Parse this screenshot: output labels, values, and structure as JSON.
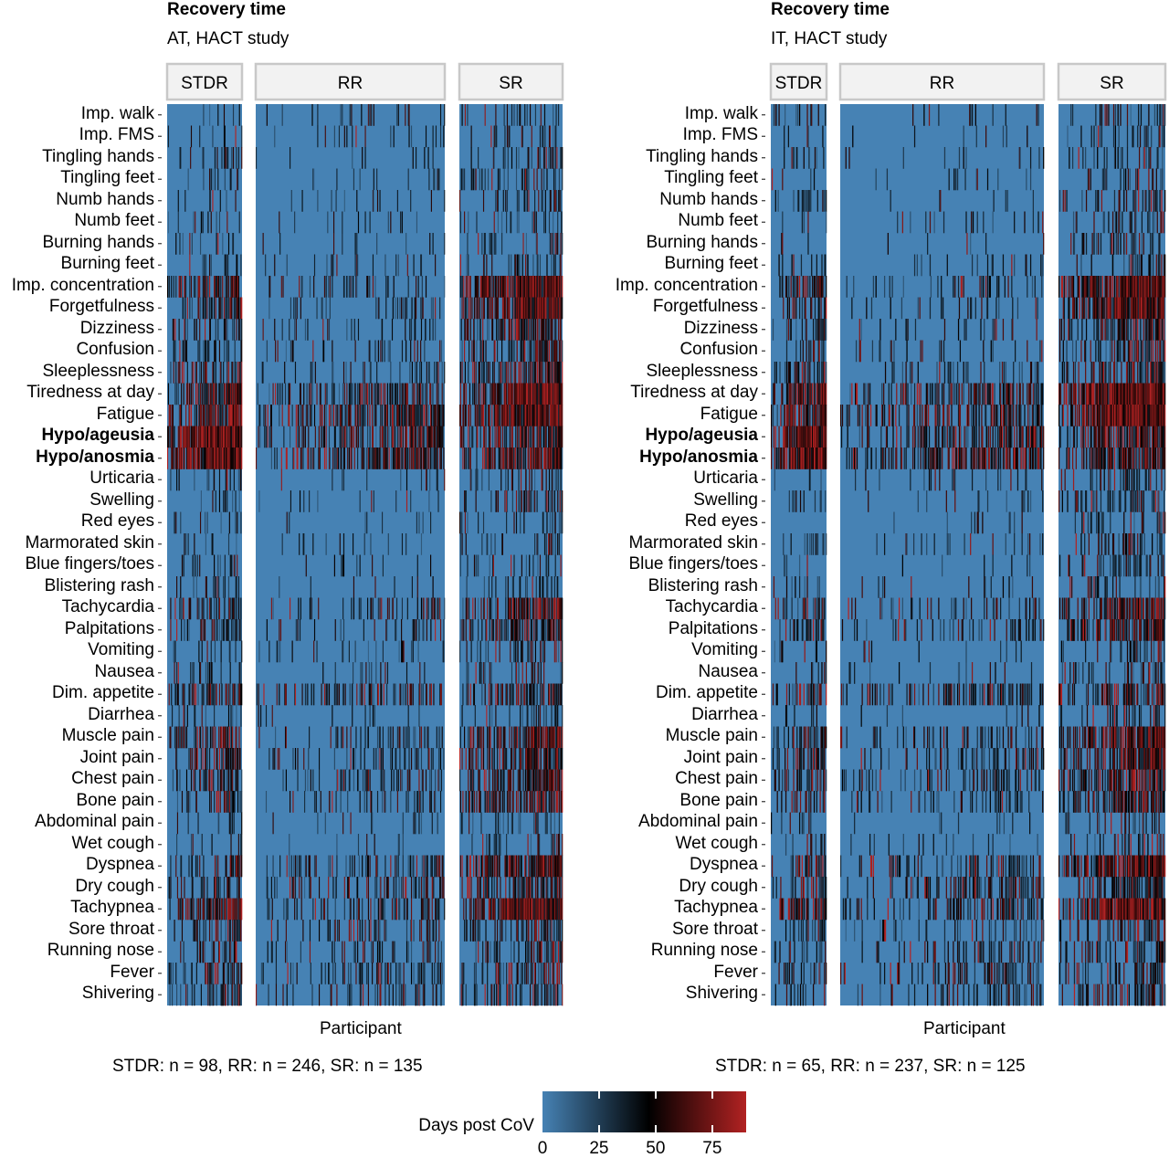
{
  "chart_data": [
    {
      "type": "heatmap",
      "title": "Recovery time",
      "subtitle": "AT, HACT study",
      "xlabel": "Participant",
      "facets": [
        "STDR",
        "RR",
        "SR"
      ],
      "counts": {
        "STDR": 98,
        "RR": 246,
        "SR": 135
      },
      "caption": "STDR: n = 98, RR: n = 246, SR: n = 135"
    },
    {
      "type": "heatmap",
      "title": "Recovery time",
      "subtitle": "IT, HACT study",
      "xlabel": "Participant",
      "facets": [
        "STDR",
        "RR",
        "SR"
      ],
      "counts": {
        "STDR": 65,
        "RR": 237,
        "SR": 125
      },
      "caption": "STDR: n = 65, RR: n = 237, SR: n = 125"
    }
  ],
  "symptoms": [
    "Imp. walk",
    "Imp. FMS",
    "Tingling hands",
    "Tingling feet",
    "Numb hands",
    "Numb feet",
    "Burning hands",
    "Burning feet",
    "Imp. concentration",
    "Forgetfulness",
    "Dizziness",
    "Confusion",
    "Sleeplessness",
    "Tiredness at day",
    "Fatigue",
    "Hypo/ageusia",
    "Hypo/anosmia",
    "Urticaria",
    "Swelling",
    "Red eyes",
    "Marmorated skin",
    "Blue fingers/toes",
    "Blistering rash",
    "Tachycardia",
    "Palpitations",
    "Vomiting",
    "Nausea",
    "Dim. appetite",
    "Diarrhea",
    "Muscle pain",
    "Joint pain",
    "Chest pain",
    "Bone pain",
    "Abdominal pain",
    "Wet cough",
    "Dyspnea",
    "Dry cough",
    "Tachypnea",
    "Sore throat",
    "Running nose",
    "Fever",
    "Shivering"
  ],
  "bold_symptoms": [
    "Hypo/ageusia",
    "Hypo/anosmia"
  ],
  "legend": {
    "title": "Days post CoV",
    "ticks": [
      "0",
      "25",
      "50",
      "75"
    ],
    "range": [
      0,
      90
    ],
    "colors": {
      "low": "#4682b4",
      "mid": "#000000",
      "high": "#b22222"
    }
  }
}
